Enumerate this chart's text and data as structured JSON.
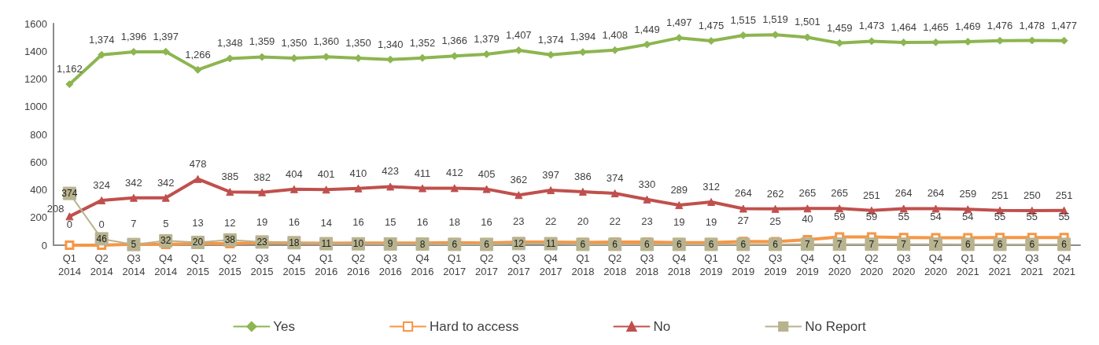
{
  "chart_data": {
    "type": "line",
    "categories": [
      "Q1\n2014",
      "Q2\n2014",
      "Q3\n2014",
      "Q4\n2014",
      "Q1\n2015",
      "Q2\n2015",
      "Q3\n2015",
      "Q4\n2015",
      "Q1\n2016",
      "Q2\n2016",
      "Q3\n2016",
      "Q4\n2016",
      "Q1\n2017",
      "Q2\n2017",
      "Q3\n2017",
      "Q4\n2017",
      "Q1\n2018",
      "Q2\n2018",
      "Q3\n2018",
      "Q4\n2018",
      "Q1\n2019",
      "Q2\n2019",
      "Q3\n2019",
      "Q4\n2019",
      "Q1\n2020",
      "Q2\n2020",
      "Q3\n2020",
      "Q4\n2020",
      "Q1\n2021",
      "Q2\n2021",
      "Q3\n2021",
      "Q4\n2021"
    ],
    "series": [
      {
        "name": "Yes",
        "color": "#8db550",
        "marker": "diamond",
        "values": [
          1162,
          1374,
          1396,
          1397,
          1266,
          1348,
          1359,
          1350,
          1360,
          1350,
          1340,
          1352,
          1366,
          1379,
          1407,
          1374,
          1394,
          1408,
          1449,
          1497,
          1475,
          1515,
          1519,
          1501,
          1459,
          1473,
          1464,
          1465,
          1469,
          1476,
          1478,
          1477
        ],
        "value_labels": [
          "1,162",
          "1,374",
          "1,396",
          "1,397",
          "1,266",
          "1,348",
          "1,359",
          "1,350",
          "1,360",
          "1,350",
          "1,340",
          "1,352",
          "1,366",
          "1,379",
          "1,407",
          "1,374",
          "1,394",
          "1,408",
          "1,449",
          "1,497",
          "1,475",
          "1,515",
          "1,519",
          "1,501",
          "1,459",
          "1,473",
          "1,464",
          "1,465",
          "1,469",
          "1,476",
          "1,478",
          "1,477"
        ]
      },
      {
        "name": "Hard to access",
        "color": "#f79646",
        "marker": "square",
        "values": [
          0,
          0,
          7,
          5,
          13,
          12,
          19,
          16,
          14,
          16,
          15,
          16,
          18,
          16,
          23,
          22,
          20,
          22,
          23,
          19,
          19,
          27,
          25,
          40,
          59,
          59,
          55,
          54,
          54,
          55,
          55,
          55
        ]
      },
      {
        "name": "No",
        "color": "#c0504d",
        "marker": "triangle",
        "values": [
          208,
          324,
          342,
          342,
          478,
          385,
          382,
          404,
          401,
          410,
          423,
          411,
          412,
          405,
          362,
          397,
          386,
          374,
          330,
          289,
          312,
          264,
          262,
          265,
          265,
          251,
          264,
          264,
          259,
          251,
          250,
          251
        ]
      },
      {
        "name": "No Report",
        "color": "#b8b38f",
        "marker": "square",
        "values": [
          374,
          46,
          5,
          32,
          20,
          38,
          23,
          18,
          11,
          10,
          9,
          8,
          6,
          6,
          12,
          11,
          6,
          6,
          6,
          6,
          6,
          6,
          6,
          7,
          7,
          7,
          7,
          7,
          6,
          6,
          6,
          6
        ]
      }
    ],
    "ylim": [
      0,
      1600
    ],
    "yticks": [
      0,
      200,
      400,
      600,
      800,
      1000,
      1200,
      1400,
      1600
    ],
    "grid": false,
    "legend": "bottom",
    "data_labels": true
  }
}
